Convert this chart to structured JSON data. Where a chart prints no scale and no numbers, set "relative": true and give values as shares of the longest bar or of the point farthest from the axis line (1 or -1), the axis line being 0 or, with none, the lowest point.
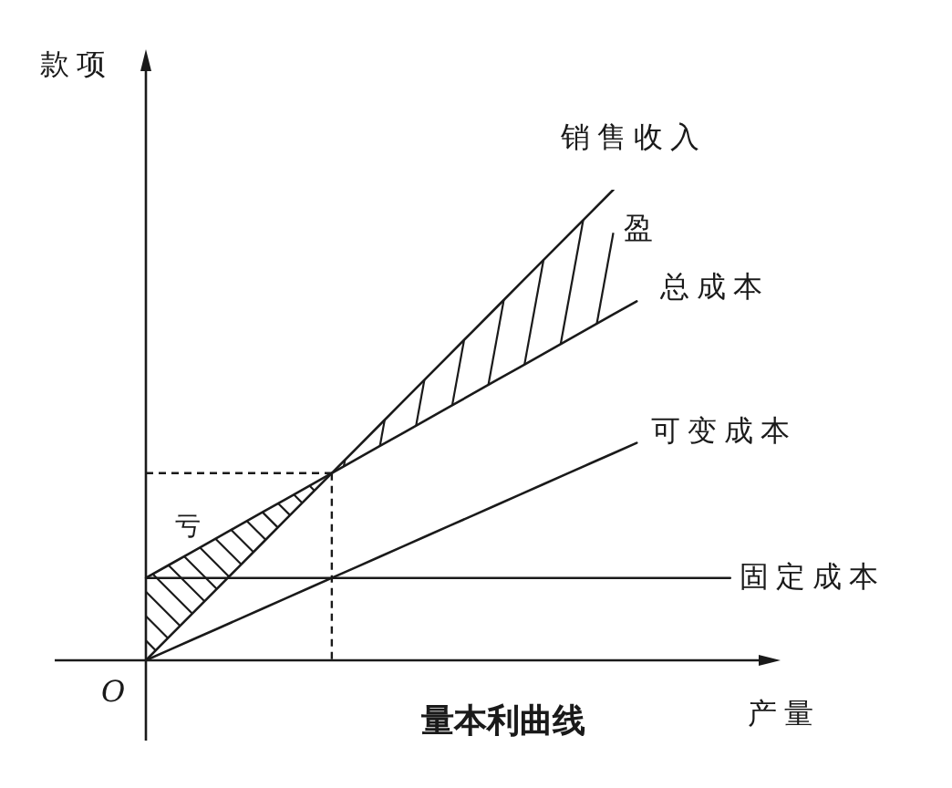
{
  "chart_data": {
    "type": "line",
    "title": "量本利曲线",
    "xlabel": "产量",
    "ylabel": "款项",
    "relative": true,
    "marker": "none",
    "line_style": "solid",
    "categories": [
      null,
      null,
      null,
      null,
      null,
      null,
      null,
      null,
      null,
      null,
      null,
      null,
      null,
      null,
      null,
      null,
      null,
      null,
      null,
      null,
      null,
      null,
      null,
      null,
      null,
      null,
      null,
      null
    ],
    "series": [
      {
        "name": "销售收入",
        "color": "#1a1a1a",
        "values": [
          0,
          0.05,
          0.1,
          0.15,
          0.2,
          0.25,
          0.3,
          0.35,
          0.4,
          0.45,
          0.5,
          0.55,
          0.6,
          0.65,
          0.7,
          0.75,
          0.8,
          0.85,
          0.9,
          0.95,
          1,
          null,
          null,
          null,
          null,
          null,
          null,
          null
        ]
      },
      {
        "name": "总成本",
        "color": "#1a1a1a",
        "values": [
          0.175,
          0.203,
          0.231,
          0.259,
          0.287,
          0.315,
          0.343,
          0.371,
          0.399,
          0.427,
          0.455,
          0.483,
          0.511,
          0.539,
          0.567,
          0.595,
          0.623,
          0.651,
          0.679,
          0.707,
          0.735,
          0.763,
          null,
          null,
          null,
          null,
          null,
          null
        ]
      },
      {
        "name": "可变成本",
        "color": "#1a1a1a",
        "values": [
          0,
          0.022,
          0.044,
          0.066,
          0.088,
          0.11,
          0.132,
          0.154,
          0.176,
          0.198,
          0.22,
          0.242,
          0.264,
          0.286,
          0.308,
          0.33,
          0.352,
          0.374,
          0.396,
          0.418,
          0.44,
          0.462,
          null,
          null,
          null,
          null,
          null,
          null
        ]
      },
      {
        "name": "固定成本",
        "color": "#1a1a1a",
        "values": [
          0.175,
          0.175,
          0.175,
          0.175,
          0.175,
          0.175,
          0.175,
          0.175,
          0.175,
          0.175,
          0.175,
          0.175,
          0.175,
          0.175,
          0.175,
          0.175,
          0.175,
          0.175,
          0.175,
          0.175,
          0.175,
          0.175,
          0.175,
          0.175,
          0.175,
          0.175,
          null,
          null
        ]
      }
    ],
    "annotations": [
      "O",
      "盈",
      "亏"
    ]
  }
}
